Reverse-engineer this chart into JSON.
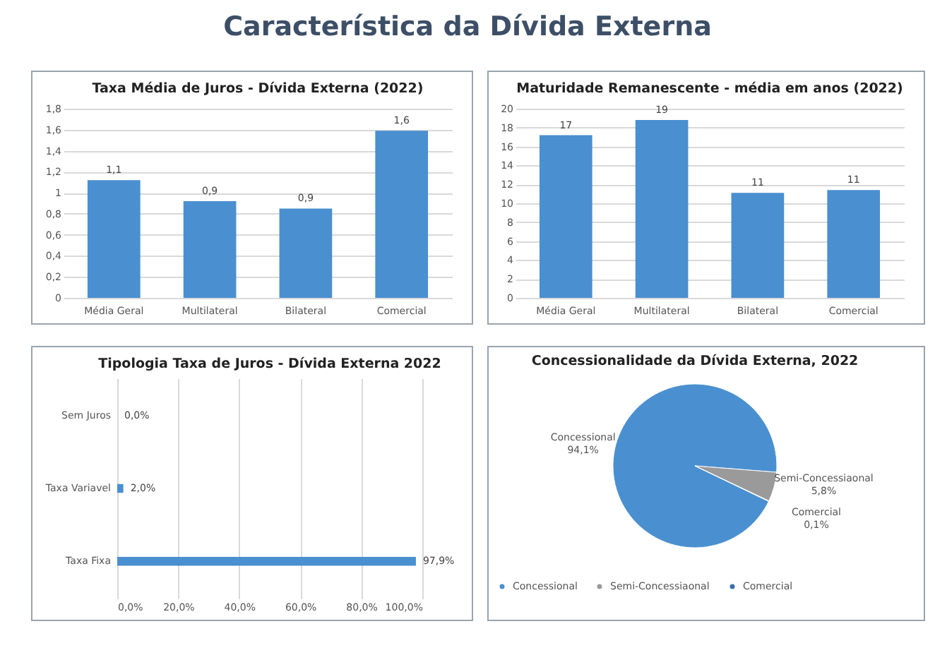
{
  "chart_data": [
    {
      "type": "other",
      "title": "Característica da Dívida Externa"
    },
    {
      "type": "bar",
      "title": "Taxa Média de Juros - Dívida Externa (2022)",
      "categories": [
        "Média Geral",
        "Multilateral",
        "Bilateral",
        "Comercial"
      ],
      "values": [
        1.12,
        0.92,
        0.85,
        1.59
      ],
      "value_labels": [
        "1,1",
        "0,9",
        "0,9",
        "1,6"
      ],
      "color": "#4a8fd0",
      "ylim": [
        0,
        1.8
      ],
      "yticks": [
        0,
        {
          "value": 0.2,
          "label": "0,2"
        },
        {
          "value": 0.4,
          "label": "0,4"
        },
        {
          "value": 0.6,
          "label": "0,6"
        },
        {
          "value": 0.8,
          "label": "0,8"
        },
        1,
        {
          "value": 1.2,
          "label": "1,2"
        },
        {
          "value": 1.4,
          "label": "1,4"
        },
        {
          "value": 1.6,
          "label": "1,6"
        },
        {
          "value": 1.8,
          "label": "1,8"
        }
      ],
      "grid": "y"
    },
    {
      "type": "bar",
      "title": "Maturidade Remanescente - média em anos (2022)",
      "categories": [
        "Média Geral",
        "Multilateral",
        "Bilateral",
        "Comercial"
      ],
      "values": [
        17.2,
        18.8,
        11.1,
        11.4
      ],
      "value_labels": [
        "17",
        "19",
        "11",
        "11"
      ],
      "color": "#4a8fd0",
      "ylim": [
        0,
        20
      ],
      "yticks": [
        0,
        2,
        4,
        6,
        8,
        10,
        12,
        14,
        16,
        18,
        20
      ],
      "grid": "y"
    },
    {
      "type": "bar",
      "orientation": "horizontal",
      "title": "Tipologia Taxa de Juros - Dívida Externa 2022",
      "categories": [
        "Sem Juros",
        "Taxa Variavel",
        "Taxa Fixa"
      ],
      "values": [
        0.0,
        2.0,
        97.9
      ],
      "value_labels": [
        "0,0%",
        "2,0%",
        "97,9%"
      ],
      "color": "#4a8fd0",
      "xlim": [
        0,
        100
      ],
      "xticks": [
        {
          "value": 0,
          "label": "0,0%"
        },
        {
          "value": 20,
          "label": "20,0%"
        },
        {
          "value": 40,
          "label": "40,0%"
        },
        {
          "value": 60,
          "label": "60,0%"
        },
        {
          "value": 80,
          "label": "80,0%"
        },
        {
          "value": 100,
          "label": "100,0%"
        }
      ],
      "grid": "x"
    },
    {
      "type": "pie",
      "title": "Concessionalidade da Dívida Externa, 2022",
      "categories": [
        "Concessional",
        "Semi-Concessiaonal",
        "Comercial"
      ],
      "values": [
        94.1,
        5.8,
        0.1
      ],
      "value_labels": [
        "94,1%",
        "5,8%",
        "0,1%"
      ],
      "colors": [
        "#4a90d0",
        "#9a9a9a",
        "#3a6fa8"
      ],
      "legend": "bottom"
    }
  ]
}
